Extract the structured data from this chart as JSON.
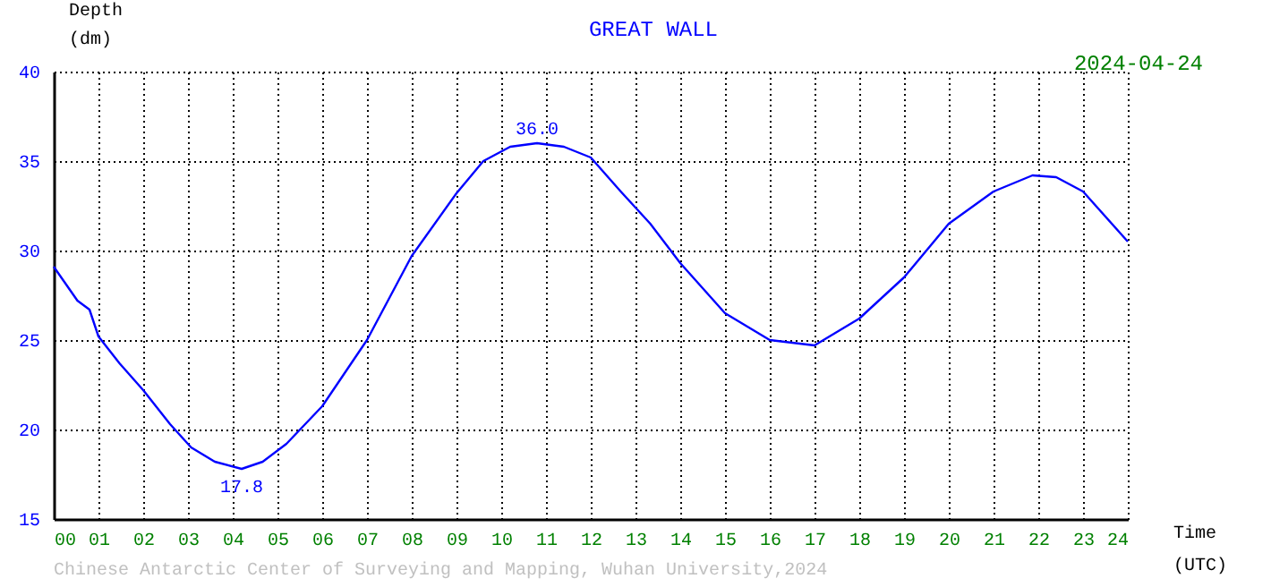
{
  "chart_data": {
    "type": "line",
    "title": "GREAT WALL",
    "subtitle": "2024-04-24",
    "xlabel": "Time\n(UTC)",
    "ylabel": "Depth\n(dm)",
    "series": [
      {
        "color": "#0000ff",
        "x": [
          0,
          0.53,
          0.8,
          1.0,
          1.47,
          2.0,
          2.6,
          3.07,
          3.6,
          4.2,
          4.67,
          5.2,
          6.0,
          7.0,
          8.0,
          9.0,
          9.6,
          10.2,
          10.8,
          11.4,
          12.0,
          12.67,
          13.33,
          14.0,
          15.0,
          16.0,
          17.0,
          18.0,
          19.0,
          20.0,
          21.0,
          21.87,
          22.4,
          23.0,
          24.0
        ],
        "values": [
          29.1,
          27.2,
          26.7,
          25.2,
          23.7,
          22.2,
          20.3,
          19.0,
          18.2,
          17.8,
          18.2,
          19.2,
          21.3,
          25.0,
          29.7,
          33.2,
          35.0,
          35.8,
          36.0,
          35.8,
          35.2,
          33.3,
          31.5,
          29.3,
          26.5,
          25.0,
          24.7,
          26.2,
          28.5,
          31.5,
          33.3,
          34.2,
          34.1,
          33.3,
          30.5
        ]
      }
    ],
    "xlim": [
      0,
      24
    ],
    "xticks": [
      {
        "value": 0,
        "label": "00"
      },
      {
        "value": 1,
        "label": "01"
      },
      {
        "value": 2,
        "label": "02"
      },
      {
        "value": 3,
        "label": "03"
      },
      {
        "value": 4,
        "label": "04"
      },
      {
        "value": 5,
        "label": "05"
      },
      {
        "value": 6,
        "label": "06"
      },
      {
        "value": 7,
        "label": "07"
      },
      {
        "value": 8,
        "label": "08"
      },
      {
        "value": 9,
        "label": "09"
      },
      10,
      11,
      12,
      13,
      14,
      15,
      16,
      17,
      18,
      19,
      20,
      21,
      22,
      23,
      24
    ],
    "ylim": [
      15,
      40
    ],
    "yticks": [
      15,
      20,
      25,
      30,
      35,
      40
    ],
    "annotations": [
      {
        "text": "36.0",
        "x": 10.8,
        "y": 36.0
      },
      {
        "text": "17.8",
        "x": 4.2,
        "y": 17.8
      },
      "Chinese Antarctic Center of Surveying and Mapping, Wuhan University,2024"
    ],
    "grid": true,
    "marker": "none",
    "line_style": "solid"
  }
}
